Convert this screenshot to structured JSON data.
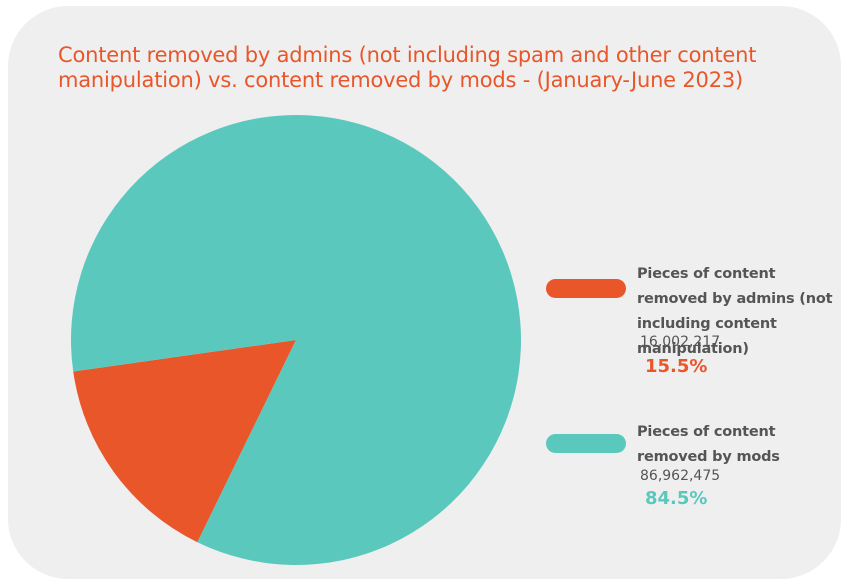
{
  "chart_data": {
    "type": "pie",
    "title": "Content removed by admins (not including spam and other content manipulation) vs. content removed by mods - (January-June 2023)",
    "slices": [
      {
        "label": "Pieces of content removed by admins (not including content manipulation)",
        "value": 16002217,
        "value_text": "16,002,217",
        "percent": 15.5,
        "percent_text": "15.5%",
        "color": "#e8562a"
      },
      {
        "label": "Pieces of content removed by mods",
        "value": 86962475,
        "value_text": "86,962,475",
        "percent": 84.5,
        "percent_text": "84.5%",
        "color": "#5bc8bd"
      }
    ],
    "legend_placement": "right"
  },
  "colors": {
    "title": "#e8562a",
    "card_background": "#efefef",
    "legend_text": "#555555"
  }
}
